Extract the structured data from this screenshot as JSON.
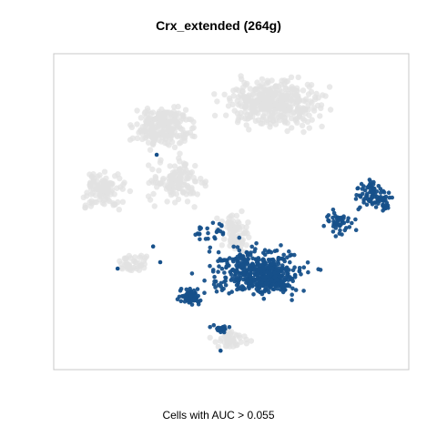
{
  "chart_data": {
    "type": "scatter",
    "title": "Crx_extended (264g)",
    "xlabel": "Cells with AUC > 0.055",
    "ylabel": "",
    "grid": false,
    "legend": "none",
    "axes_visible": false,
    "colors": {
      "highlighted": "#16508a",
      "background": "#e2e2e2",
      "frame": "#c8c8c8"
    },
    "xlim": [
      0,
      100
    ],
    "ylim": [
      0,
      100
    ],
    "series": [
      {
        "role": "background",
        "regions": [
          {
            "x": [
              40,
              84
            ],
            "y": [
              72,
              96
            ],
            "n": 380
          },
          {
            "x": [
              18,
              44
            ],
            "y": [
              66,
              88
            ],
            "n": 220
          },
          {
            "x": [
              4,
              24
            ],
            "y": [
              47,
              67
            ],
            "n": 110
          },
          {
            "x": [
              22,
              48
            ],
            "y": [
              49,
              70
            ],
            "n": 130
          },
          {
            "x": [
              15,
              30
            ],
            "y": [
              29,
              39
            ],
            "n": 40
          },
          {
            "x": [
              44,
              58
            ],
            "y": [
              33,
              53
            ],
            "n": 80
          },
          {
            "x": [
              42,
              57
            ],
            "y": [
              5,
              14
            ],
            "n": 45
          }
        ]
      },
      {
        "role": "highlighted",
        "regions": [
          {
            "x": [
              34,
              80
            ],
            "y": [
              19,
              44
            ],
            "n": 380
          },
          {
            "x": [
              52,
              70
            ],
            "y": [
              21,
              37
            ],
            "n": 160
          },
          {
            "x": [
              33,
              44
            ],
            "y": [
              19,
              27
            ],
            "n": 60
          },
          {
            "x": [
              74,
              86
            ],
            "y": [
              40,
              53
            ],
            "n": 50
          },
          {
            "x": [
              83,
              96
            ],
            "y": [
              48,
              63
            ],
            "n": 75
          },
          {
            "x": [
              90,
              96
            ],
            "y": [
              49,
              57
            ],
            "n": 25
          },
          {
            "x": [
              43,
              52
            ],
            "y": [
              10,
              16
            ],
            "n": 20
          },
          {
            "x": [
              36,
              52
            ],
            "y": [
              39,
              49
            ],
            "n": 25
          }
        ],
        "points": [
          {
            "x": 29,
            "y": 68
          },
          {
            "x": 18,
            "y": 32
          },
          {
            "x": 28,
            "y": 39
          },
          {
            "x": 30,
            "y": 34
          },
          {
            "x": 47,
            "y": 6
          }
        ]
      }
    ]
  }
}
